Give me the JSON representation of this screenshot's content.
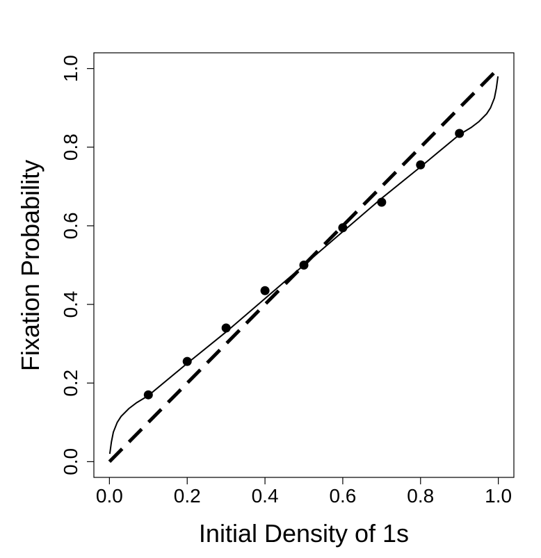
{
  "chart_data": {
    "type": "line",
    "title": "",
    "xlabel": "Initial Density of 1s",
    "ylabel": "Fixation Probability",
    "xlim": [
      -0.04,
      1.04
    ],
    "ylim": [
      -0.04,
      1.04
    ],
    "x_ticks": [
      "0.0",
      "0.2",
      "0.4",
      "0.6",
      "0.8",
      "1.0"
    ],
    "y_ticks": [
      "0.0",
      "0.2",
      "0.4",
      "0.6",
      "0.8",
      "1.0"
    ],
    "grid": false,
    "legend": "none",
    "series": [
      {
        "style": "points",
        "x": [
          0.1,
          0.2,
          0.3,
          0.4,
          0.5,
          0.6,
          0.7,
          0.8,
          0.9
        ],
        "y": [
          0.17,
          0.255,
          0.34,
          0.435,
          0.5,
          0.595,
          0.66,
          0.755,
          0.835
        ]
      },
      {
        "style": "solid",
        "x": [
          0.001,
          0.005,
          0.01,
          0.02,
          0.03,
          0.05,
          0.07,
          0.1,
          0.2,
          0.3,
          0.4,
          0.5,
          0.6,
          0.7,
          0.8,
          0.9,
          0.93,
          0.95,
          0.97,
          0.98,
          0.99,
          0.995,
          0.999
        ],
        "y": [
          0.02,
          0.05,
          0.075,
          0.1,
          0.115,
          0.135,
          0.15,
          0.168,
          0.25,
          0.33,
          0.415,
          0.5,
          0.585,
          0.67,
          0.75,
          0.832,
          0.85,
          0.865,
          0.885,
          0.9,
          0.925,
          0.95,
          0.98
        ]
      },
      {
        "style": "dashed",
        "x": [
          0,
          1
        ],
        "y": [
          0,
          1
        ]
      }
    ]
  }
}
